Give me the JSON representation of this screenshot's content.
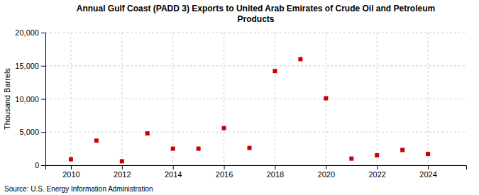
{
  "chart_data": {
    "type": "scatter",
    "title": "Annual Gulf Coast (PADD 3) Exports to United Arab Emirates of Crude Oil and Petroleum\nProducts",
    "ylabel": "Thousand Barrels",
    "source": "Source: U.S. Energy Information Administration",
    "x": [
      2010,
      2011,
      2012,
      2013,
      2014,
      2015,
      2016,
      2017,
      2018,
      2019,
      2020,
      2021,
      2022,
      2023,
      2024
    ],
    "values": [
      900,
      3700,
      600,
      4800,
      2500,
      2500,
      5600,
      2600,
      14200,
      16000,
      10100,
      1000,
      1500,
      2300,
      1700
    ],
    "color": "#cc0000",
    "marker": "square",
    "xlim": [
      2009.0,
      2025.5
    ],
    "xticks": [
      2010,
      2012,
      2014,
      2016,
      2018,
      2020,
      2022,
      2024
    ],
    "ylim": [
      0,
      20000
    ],
    "yticks": [
      0,
      {
        "value": 5000,
        "label": "5,000"
      },
      {
        "value": 10000,
        "label": "10,000"
      },
      {
        "value": 15000,
        "label": "15,000"
      },
      {
        "value": 20000,
        "label": "20,000"
      }
    ],
    "grid": true
  }
}
